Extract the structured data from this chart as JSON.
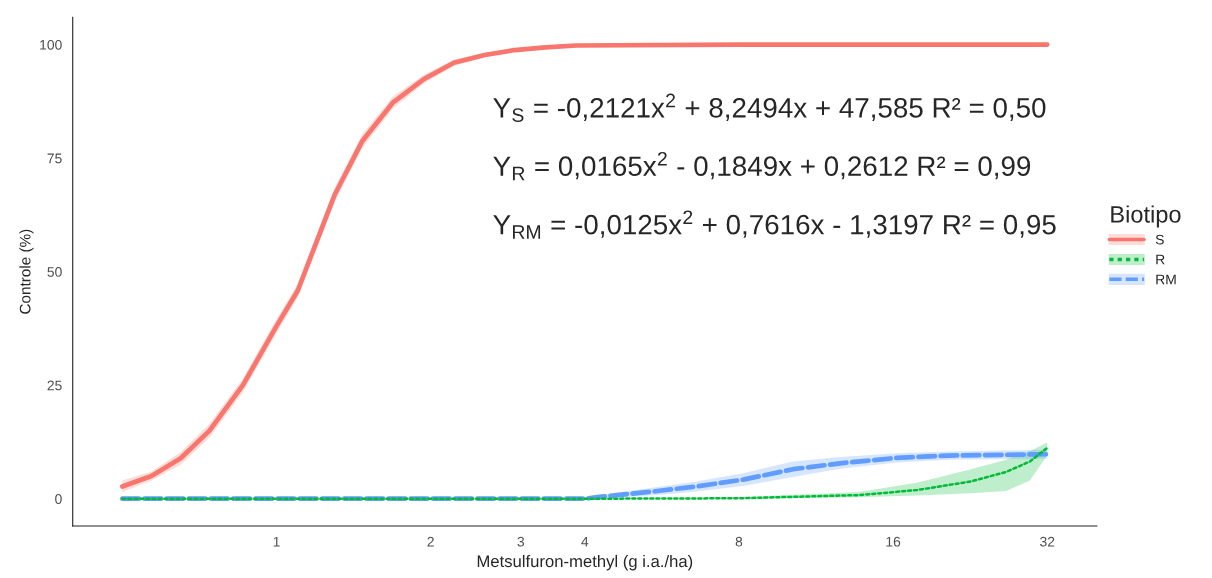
{
  "chart_data": {
    "type": "line",
    "xlabel": "Metsulfuron-methyl (g i.a./ha)",
    "ylabel": "Controle (%)",
    "legend_title": "Biotipo",
    "legend": "right",
    "grid": false,
    "log": "x",
    "xlim": [
      0.4,
      40
    ],
    "xticks": [
      1,
      2,
      3,
      4,
      8,
      16,
      32
    ],
    "ylim": [
      -6,
      106
    ],
    "yticks": [
      0,
      25,
      50,
      75,
      100
    ],
    "annotations": [
      "Y$_{S}$ = -0,2121x$^{2}$ + 8,2494x + 47,585 R² = 0,50",
      "Y$_{R}$ = 0,0165x$^{2}$ - 0,1849x + 0,2612 R² = 0,99",
      "Y$_{RM}$ = -0,0125x$^{2}$ + 0,7616x - 1,3197 R² = 0,95"
    ],
    "series": [
      {
        "name": "S",
        "color": "#f8766d",
        "line_style": "solid",
        "x": [
          0.5,
          0.57,
          0.65,
          0.74,
          0.86,
          1,
          1.1,
          1.3,
          1.47,
          1.69,
          1.94,
          2.22,
          2.55,
          2.92,
          3.35,
          3.85,
          8,
          16,
          32
        ],
        "values": [
          2.7,
          5,
          8.9,
          15,
          25,
          38,
          45.8,
          67,
          78.7,
          87.3,
          92.4,
          96,
          97.7,
          98.8,
          99.4,
          99.8,
          100,
          100,
          100
        ],
        "lower": [
          1.5,
          4,
          7.5,
          13.5,
          23.5,
          36.5,
          44.3,
          65.5,
          77.2,
          86,
          91.5,
          95.3,
          97.2,
          98.5,
          99.2,
          99.7,
          100,
          100,
          100
        ],
        "upper": [
          4,
          6,
          10.3,
          16.5,
          26.5,
          39.5,
          47.3,
          68.5,
          80.2,
          88.6,
          93.3,
          96.7,
          98.2,
          99.1,
          99.6,
          99.9,
          100,
          100,
          100
        ]
      },
      {
        "name": "R",
        "color": "#00ba38",
        "line_style": "dotted",
        "x": [
          0.5,
          1,
          2,
          4,
          8,
          13.7,
          17.8,
          22.7,
          26.6,
          29.6,
          32
        ],
        "values": [
          0,
          0,
          0,
          0,
          0.1,
          0.8,
          1.9,
          3.8,
          5.9,
          8.2,
          11.2
        ],
        "lower": [
          0,
          0,
          0,
          0,
          0,
          0.3,
          0.7,
          1.2,
          1.7,
          4,
          9.6
        ],
        "upper": [
          0,
          0,
          0,
          0,
          0.3,
          1.5,
          3.5,
          6.5,
          8.6,
          10.5,
          12.4
        ]
      },
      {
        "name": "RM",
        "color": "#619cff",
        "line_style": "dashed",
        "x": [
          0.5,
          1,
          2,
          4,
          4.27,
          5.55,
          6.6,
          8.15,
          10.2,
          12.6,
          16.3,
          20.5,
          32
        ],
        "values": [
          0,
          0,
          0,
          0,
          0.4,
          1.7,
          2.7,
          4.2,
          6.5,
          7.8,
          9,
          9.5,
          9.8
        ],
        "lower": [
          0,
          0,
          0,
          0,
          0,
          0.8,
          1.6,
          2.8,
          4.8,
          6.6,
          8,
          8.6,
          8.8
        ],
        "upper": [
          0,
          0,
          0,
          0,
          0.8,
          2.6,
          3.8,
          5.6,
          8.2,
          9.2,
          10,
          10.4,
          10.8
        ]
      }
    ]
  }
}
